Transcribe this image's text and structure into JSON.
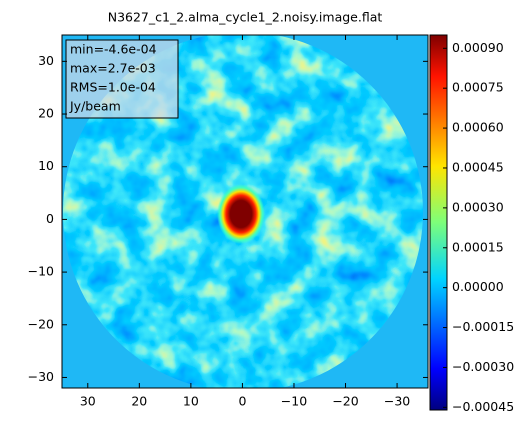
{
  "chart_data": {
    "type": "image",
    "title": "N3627_c1_2.alma_cycle1_2.noisy.image.flat",
    "xlim": [
      35,
      -36
    ],
    "xticks": [
      30,
      20,
      10,
      0,
      {
        "value": -10,
        "label": "−10"
      },
      {
        "value": -20,
        "label": "−20"
      },
      {
        "value": -30,
        "label": "−30"
      }
    ],
    "ylim": [
      -32,
      35
    ],
    "yticks": [
      {
        "value": -30,
        "label": "−30"
      },
      {
        "value": -20,
        "label": "−20"
      },
      {
        "value": -10,
        "label": "−10"
      },
      0,
      10,
      20,
      30
    ],
    "colorbar": {
      "lim": [
        -0.00046,
        0.00095
      ],
      "ticks": [
        {
          "value": -0.00045,
          "label": "−0.00045"
        },
        {
          "value": -0.0003,
          "label": "−0.00030"
        },
        {
          "value": -0.00015,
          "label": "−0.00015"
        },
        {
          "value": 0,
          "label": "0.00000"
        },
        {
          "value": 0.00015,
          "label": "0.00015"
        },
        {
          "value": 0.0003,
          "label": "0.00030"
        },
        {
          "value": 0.00045,
          "label": "0.00045"
        },
        {
          "value": 0.0006,
          "label": "0.00060"
        },
        {
          "value": 0.00075,
          "label": "0.00075"
        },
        {
          "value": 0.0009,
          "label": "0.00090"
        }
      ]
    },
    "annotations": [
      "min=-4.6e-04",
      "max=2.7e-03",
      "RMS=1.0e-04",
      "Jy/beam"
    ]
  }
}
